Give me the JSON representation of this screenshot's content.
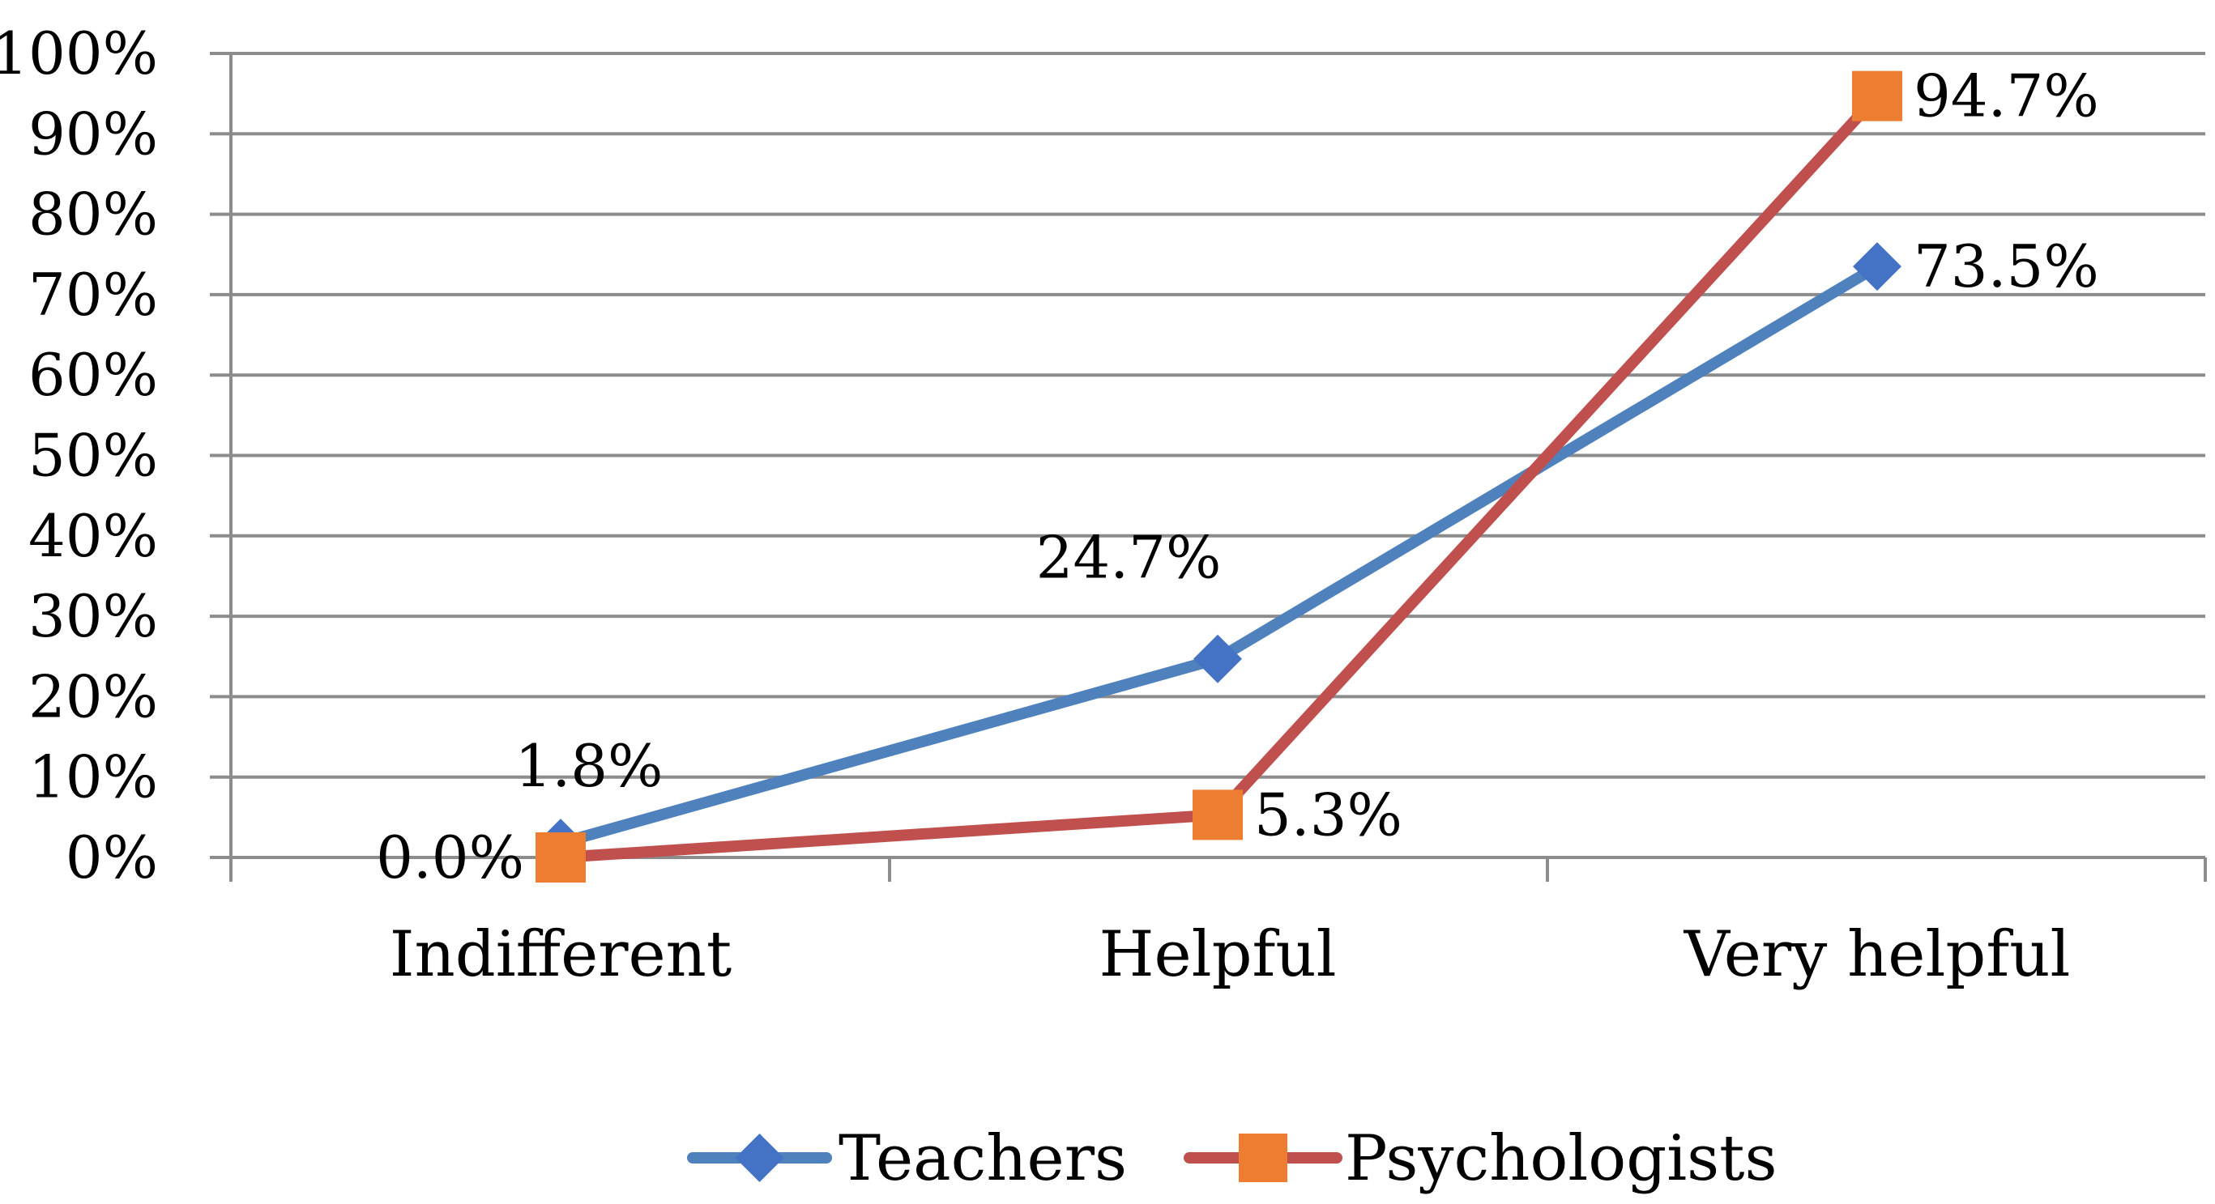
{
  "chart_data": {
    "type": "line",
    "categories": [
      "Indifferent",
      "Helpful",
      "Very helpful"
    ],
    "series": [
      {
        "name": "Teachers",
        "values": [
          1.8,
          24.7,
          73.5
        ],
        "labels": [
          "1.8%",
          "24.7%",
          "73.5%"
        ],
        "color": "#4F81BD",
        "marker": "diamond",
        "marker_color": "#4472C4"
      },
      {
        "name": "Psychologists",
        "values": [
          0.0,
          5.3,
          94.7
        ],
        "labels": [
          "0.0%",
          "5.3%",
          "94.7%"
        ],
        "color": "#C0504D",
        "marker": "square",
        "marker_color": "#ED7D31"
      }
    ],
    "yticks": [
      "0%",
      "10%",
      "20%",
      "30%",
      "40%",
      "50%",
      "60%",
      "70%",
      "80%",
      "90%",
      "100%"
    ],
    "ylim": [
      0,
      100
    ],
    "title": "",
    "xlabel": "",
    "ylabel": "",
    "grid": true,
    "legend_position": "bottom"
  }
}
